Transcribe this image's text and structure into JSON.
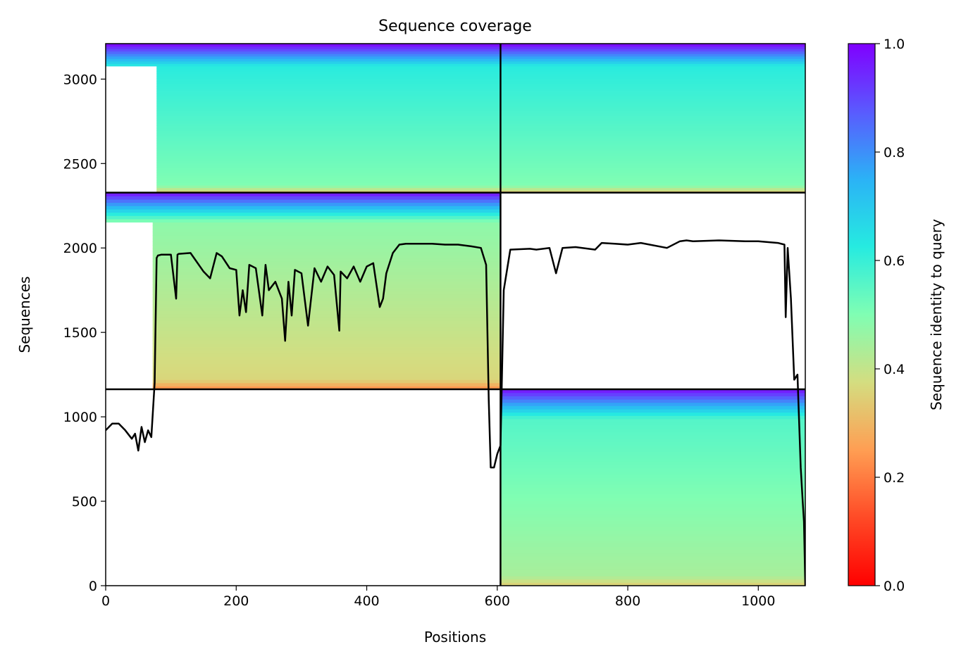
{
  "chart_data": {
    "type": "heatmap",
    "title": "Sequence coverage",
    "xlabel": "Positions",
    "ylabel": "Sequences",
    "colorbar_label": "Sequence identity to query",
    "colormap": "rainbow_r",
    "xlim": [
      0,
      1072
    ],
    "ylim": [
      0,
      3210
    ],
    "clim": [
      0.0,
      1.0
    ],
    "x_ticks": [
      0,
      200,
      400,
      600,
      800,
      1000
    ],
    "y_ticks": [
      0,
      500,
      1000,
      1500,
      2000,
      2500,
      3000
    ],
    "colorbar_ticks": [
      "0.0",
      "0.2",
      "0.4",
      "0.6",
      "0.8",
      "1.0"
    ],
    "block_boundaries": {
      "x": [
        605
      ],
      "y": [
        1163,
        2328
      ]
    },
    "blocks": [
      {
        "name": "block-bottom-right",
        "x": [
          605,
          1072
        ],
        "y": [
          0,
          1163
        ],
        "identity_top": 0.98,
        "identity_bottom": 0.34,
        "mid_identity": 0.44,
        "start_x": 605
      },
      {
        "name": "block-middle-left",
        "x": [
          0,
          605
        ],
        "y": [
          1163,
          2328
        ],
        "identity_top": 0.98,
        "identity_bottom": 0.22,
        "mid_identity": 0.36,
        "start_x": 72
      },
      {
        "name": "block-top-left",
        "x": [
          0,
          605
        ],
        "y": [
          2328,
          3210
        ],
        "identity_top": 1.0,
        "identity_bottom": 0.33,
        "mid_identity": 0.5,
        "start_x": 78
      },
      {
        "name": "block-top-right",
        "x": [
          605,
          1072
        ],
        "y": [
          2328,
          3210
        ],
        "identity_top": 1.0,
        "identity_bottom": 0.33,
        "mid_identity": 0.5,
        "start_x": 605
      }
    ],
    "coverage_line": {
      "color": "#000000",
      "x": [
        0,
        10,
        20,
        30,
        40,
        45,
        50,
        55,
        60,
        65,
        70,
        75,
        78,
        80,
        85,
        100,
        108,
        110,
        112,
        130,
        150,
        160,
        170,
        178,
        190,
        200,
        205,
        210,
        215,
        220,
        230,
        240,
        245,
        250,
        260,
        270,
        275,
        280,
        285,
        290,
        300,
        310,
        320,
        330,
        340,
        350,
        358,
        360,
        370,
        380,
        390,
        400,
        410,
        420,
        425,
        430,
        440,
        450,
        460,
        470,
        480,
        500,
        520,
        540,
        560,
        575,
        583,
        587,
        590,
        595,
        600,
        605,
        610,
        620,
        650,
        660,
        680,
        690,
        700,
        720,
        750,
        760,
        780,
        800,
        820,
        860,
        880,
        890,
        900,
        940,
        980,
        1000,
        1030,
        1040,
        1042,
        1045,
        1050,
        1055,
        1060,
        1065,
        1068,
        1070,
        1072
      ],
      "y": [
        920,
        960,
        960,
        920,
        870,
        900,
        800,
        940,
        850,
        920,
        880,
        1200,
        1940,
        1955,
        1960,
        1960,
        1700,
        1960,
        1965,
        1970,
        1860,
        1820,
        1970,
        1950,
        1880,
        1870,
        1600,
        1750,
        1620,
        1900,
        1880,
        1600,
        1900,
        1750,
        1800,
        1700,
        1450,
        1800,
        1600,
        1870,
        1850,
        1540,
        1880,
        1800,
        1890,
        1840,
        1510,
        1860,
        1820,
        1890,
        1800,
        1890,
        1910,
        1650,
        1700,
        1850,
        1970,
        2020,
        2025,
        2025,
        2025,
        2025,
        2020,
        2020,
        2010,
        2000,
        1900,
        1100,
        700,
        700,
        780,
        830,
        1750,
        1990,
        1995,
        1990,
        2000,
        1850,
        2000,
        2005,
        1990,
        2030,
        2025,
        2020,
        2030,
        2000,
        2040,
        2045,
        2040,
        2045,
        2040,
        2040,
        2030,
        2020,
        1590,
        2000,
        1700,
        1220,
        1250,
        700,
        500,
        380,
        0
      ]
    }
  }
}
